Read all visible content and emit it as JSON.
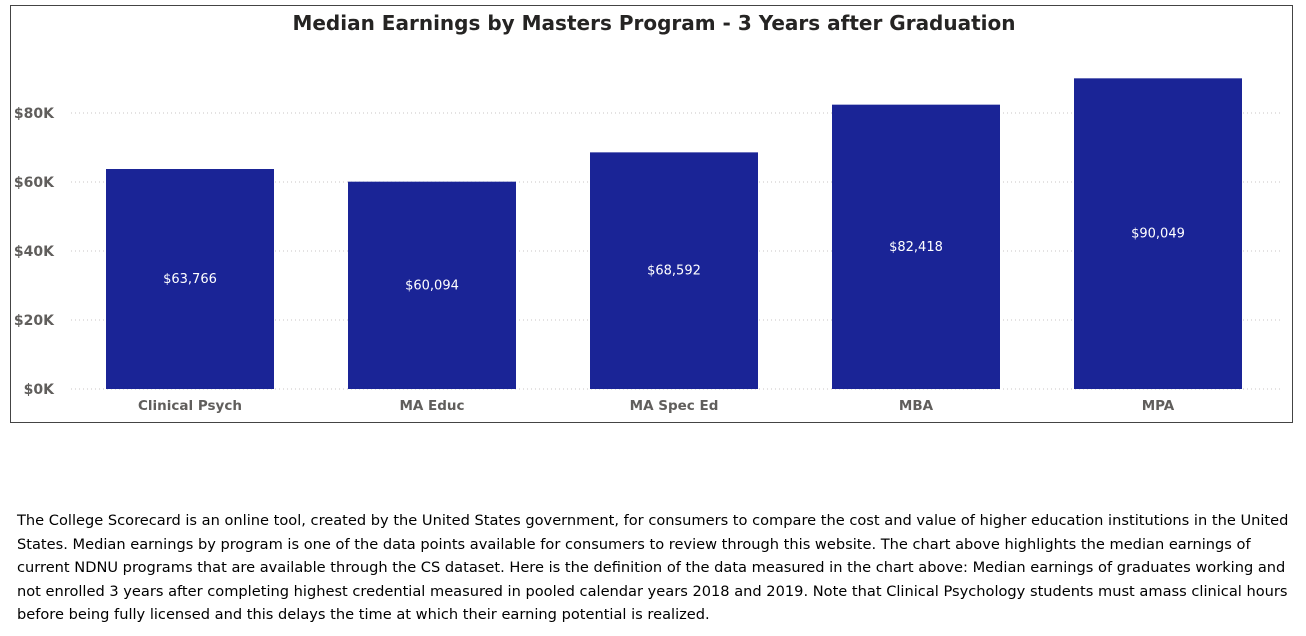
{
  "chart_data": {
    "type": "bar",
    "title": "Median Earnings by Masters Program - 3 Years after Graduation",
    "categories": [
      "Clinical Psych",
      "MA Educ",
      "MA Spec Ed",
      "MBA",
      "MPA"
    ],
    "values": [
      63766,
      60094,
      68592,
      82418,
      90049
    ],
    "data_labels": [
      "$63,766",
      "$60,094",
      "$68,592",
      "$82,418",
      "$90,049"
    ],
    "xlabel": "",
    "ylabel": "",
    "ylim": [
      0,
      100000
    ],
    "yticks": [
      0,
      20000,
      40000,
      60000,
      80000
    ],
    "ytick_labels": [
      "$0K",
      "$20K",
      "$40K",
      "$60K",
      "$80K"
    ],
    "grid": "horizontal dotted",
    "legend": "none",
    "bar_color": "#1a2496"
  },
  "description": "The College Scorecard is an online tool, created by the United States government, for consumers to compare the cost and value of higher education institutions in the United States.  Median earnings by program is one of the data points available for consumers to review through this website.  The chart above highlights the median earnings of current NDNU programs that are available through the CS dataset.  Here is the definition of the data measured in the chart above:  Median earnings of graduates working and not enrolled 3 years after completing highest credential measured in pooled calendar years 2018 and 2019.  Note that Clinical Psychology students must amass clinical hours before being fully licensed and this delays the time at which their earning potential is realized."
}
